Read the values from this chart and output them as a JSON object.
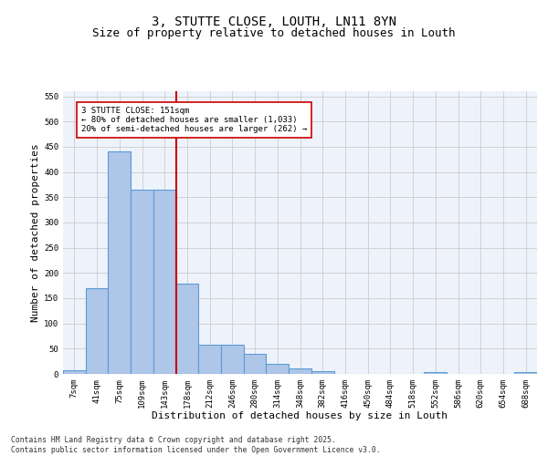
{
  "title1": "3, STUTTE CLOSE, LOUTH, LN11 8YN",
  "title2": "Size of property relative to detached houses in Louth",
  "xlabel": "Distribution of detached houses by size in Louth",
  "ylabel": "Number of detached properties",
  "categories": [
    "7sqm",
    "41sqm",
    "75sqm",
    "109sqm",
    "143sqm",
    "178sqm",
    "212sqm",
    "246sqm",
    "280sqm",
    "314sqm",
    "348sqm",
    "382sqm",
    "416sqm",
    "450sqm",
    "484sqm",
    "518sqm",
    "552sqm",
    "586sqm",
    "620sqm",
    "654sqm",
    "688sqm"
  ],
  "values": [
    8,
    170,
    440,
    365,
    365,
    178,
    57,
    57,
    40,
    20,
    10,
    5,
    0,
    0,
    0,
    0,
    3,
    0,
    0,
    0,
    3
  ],
  "bar_color": "#aec6e8",
  "bar_edgecolor": "#5b9bd5",
  "bar_linewidth": 0.8,
  "vline_color": "#cc0000",
  "annotation_text": "3 STUTTE CLOSE: 151sqm\n← 80% of detached houses are smaller (1,033)\n20% of semi-detached houses are larger (262) →",
  "annotation_box_edgecolor": "#cc0000",
  "annotation_box_facecolor": "#ffffff",
  "ylim": [
    0,
    560
  ],
  "yticks": [
    0,
    50,
    100,
    150,
    200,
    250,
    300,
    350,
    400,
    450,
    500,
    550
  ],
  "grid_color": "#cccccc",
  "bg_color": "#eef3fb",
  "footnote": "Contains HM Land Registry data © Crown copyright and database right 2025.\nContains public sector information licensed under the Open Government Licence v3.0.",
  "title_fontsize": 10,
  "subtitle_fontsize": 9,
  "tick_fontsize": 6.5,
  "ylabel_fontsize": 8,
  "xlabel_fontsize": 8,
  "annotation_fontsize": 6.5,
  "footnote_fontsize": 5.8
}
